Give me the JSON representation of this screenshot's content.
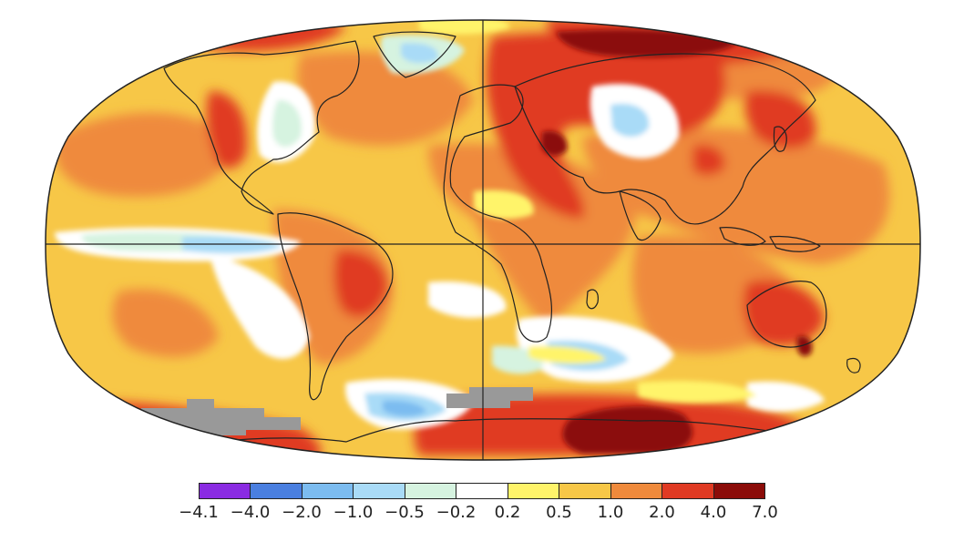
{
  "map": {
    "projection": "robinson",
    "missing_color": "#999999",
    "boundary_color": "#222222"
  },
  "legend": {
    "colors": [
      "#8a2be2",
      "#4a7fe0",
      "#7cbcf0",
      "#a9dbf7",
      "#d6f3e0",
      "#ffffff",
      "#fff46a",
      "#f7c747",
      "#ef8a3c",
      "#e03a23",
      "#8b0c09"
    ],
    "ticks": [
      "−4.1",
      "−4.0",
      "−2.0",
      "−1.0",
      "−0.5",
      "−0.2",
      "0.2",
      "0.5",
      "1.0",
      "2.0",
      "4.0",
      "7.0"
    ]
  }
}
